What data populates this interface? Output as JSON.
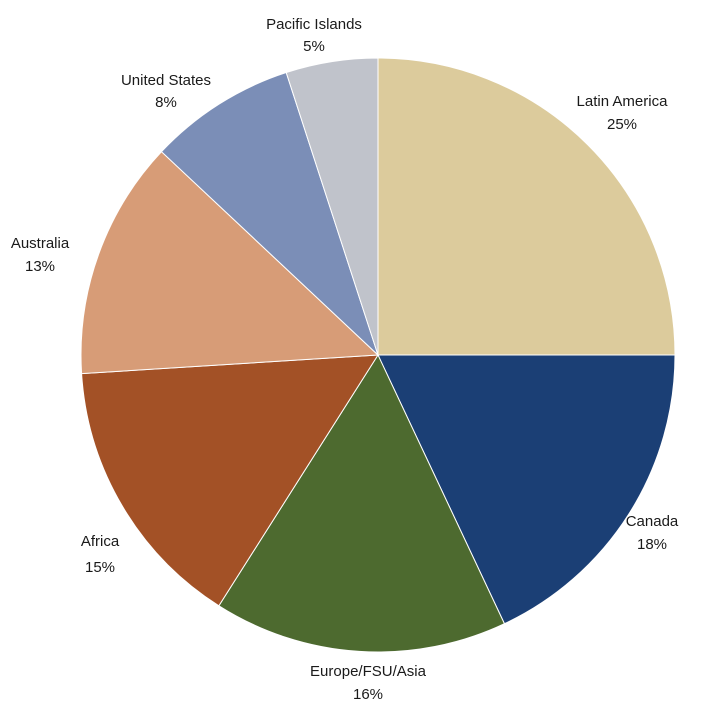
{
  "chart_data": {
    "type": "pie",
    "start_angle_deg": 0,
    "direction": "clockwise",
    "slices": [
      {
        "label": "Latin America",
        "value": 25,
        "value_label": "25%",
        "color": "#DCCB9C"
      },
      {
        "label": "Canada",
        "value": 18,
        "value_label": "18%",
        "color": "#1B3F75"
      },
      {
        "label": "Europe/FSU/Asia",
        "value": 16,
        "value_label": "16%",
        "color": "#4D6A2F"
      },
      {
        "label": "Africa",
        "value": 15,
        "value_label": "15%",
        "color": "#A35126"
      },
      {
        "label": "Australia",
        "value": 13,
        "value_label": "13%",
        "color": "#D79C77"
      },
      {
        "label": "United States",
        "value": 8,
        "value_label": "8%",
        "color": "#7B8EB7"
      },
      {
        "label": "Pacific Islands",
        "value": 5,
        "value_label": "5%",
        "color": "#C0C3CB"
      }
    ]
  }
}
